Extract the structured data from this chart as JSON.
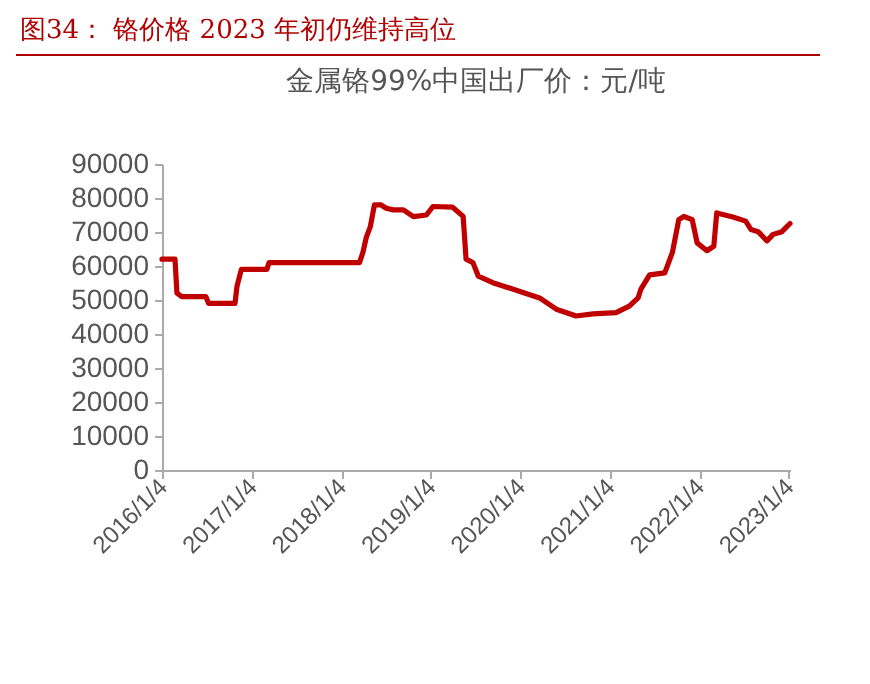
{
  "chart_data": {
    "type": "line",
    "title": "图34： 铬价格 2023 年初仍维持高位",
    "subtitle": "金属铬99%中国出厂价：元/吨",
    "x": [
      "2016-01-04",
      "2016-02-26",
      "2016-03-05",
      "2016-03-25",
      "2016-07-01",
      "2016-07-12",
      "2016-10-28",
      "2016-11-05",
      "2016-11-23",
      "2017-03-07",
      "2017-03-16",
      "2018-03-20",
      "2018-04-03",
      "2018-04-17",
      "2018-05-03",
      "2018-05-20",
      "2018-06-15",
      "2018-07-07",
      "2018-08-05",
      "2018-09-15",
      "2018-10-26",
      "2018-12-18",
      "2019-01-14",
      "2019-04-04",
      "2019-05-17",
      "2019-05-29",
      "2019-06-26",
      "2019-07-18",
      "2019-09-15",
      "2020-01-04",
      "2020-03-24",
      "2020-05-31",
      "2020-08-20",
      "2020-10-28",
      "2021-01-30",
      "2021-03-25",
      "2021-04-30",
      "2021-05-11",
      "2021-06-16",
      "2021-08-17",
      "2021-09-17",
      "2021-10-13",
      "2021-11-03",
      "2021-12-07",
      "2021-12-27",
      "2022-02-05",
      "2022-03-05",
      "2022-03-17",
      "2022-05-22",
      "2022-07-13",
      "2022-08-04",
      "2022-09-02",
      "2022-10-08",
      "2022-11-02",
      "2022-12-08",
      "2023-01-10"
    ],
    "series": [
      {
        "color": "#c00000",
        "values": [
          62000,
          62000,
          52000,
          51000,
          51000,
          49000,
          49000,
          54000,
          59000,
          59000,
          61000,
          61000,
          64000,
          68500,
          71500,
          78000,
          78000,
          77000,
          76500,
          76500,
          74500,
          75000,
          77500,
          77300,
          74600,
          62000,
          61000,
          57000,
          55100,
          52500,
          50600,
          47300,
          45300,
          45900,
          46300,
          48200,
          50600,
          53100,
          57400,
          58000,
          64000,
          73600,
          74600,
          73600,
          66800,
          64500,
          65800,
          75600,
          74400,
          73200,
          70700,
          70100,
          67400,
          69300,
          70100,
          72500
        ]
      }
    ],
    "xlim": [
      "2016-01-04",
      "2023-01-10"
    ],
    "xticks": [
      {
        "value": "2016-01-04",
        "label": "2016/1/4"
      },
      {
        "value": "2017-01-04",
        "label": "2017/1/4"
      },
      {
        "value": "2018-01-04",
        "label": "2018/1/4"
      },
      {
        "value": "2019-01-04",
        "label": "2019/1/4"
      },
      {
        "value": "2020-01-04",
        "label": "2020/1/4"
      },
      {
        "value": "2021-01-04",
        "label": "2021/1/4"
      },
      {
        "value": "2022-01-04",
        "label": "2022/1/4"
      },
      {
        "value": "2023-01-04",
        "label": "2023/1/4"
      }
    ],
    "ylim": [
      0,
      90000
    ],
    "yticks": [
      0,
      10000,
      20000,
      30000,
      40000,
      50000,
      60000,
      70000,
      80000,
      90000
    ],
    "grid": false,
    "marker": "none",
    "line_style": "solid"
  }
}
